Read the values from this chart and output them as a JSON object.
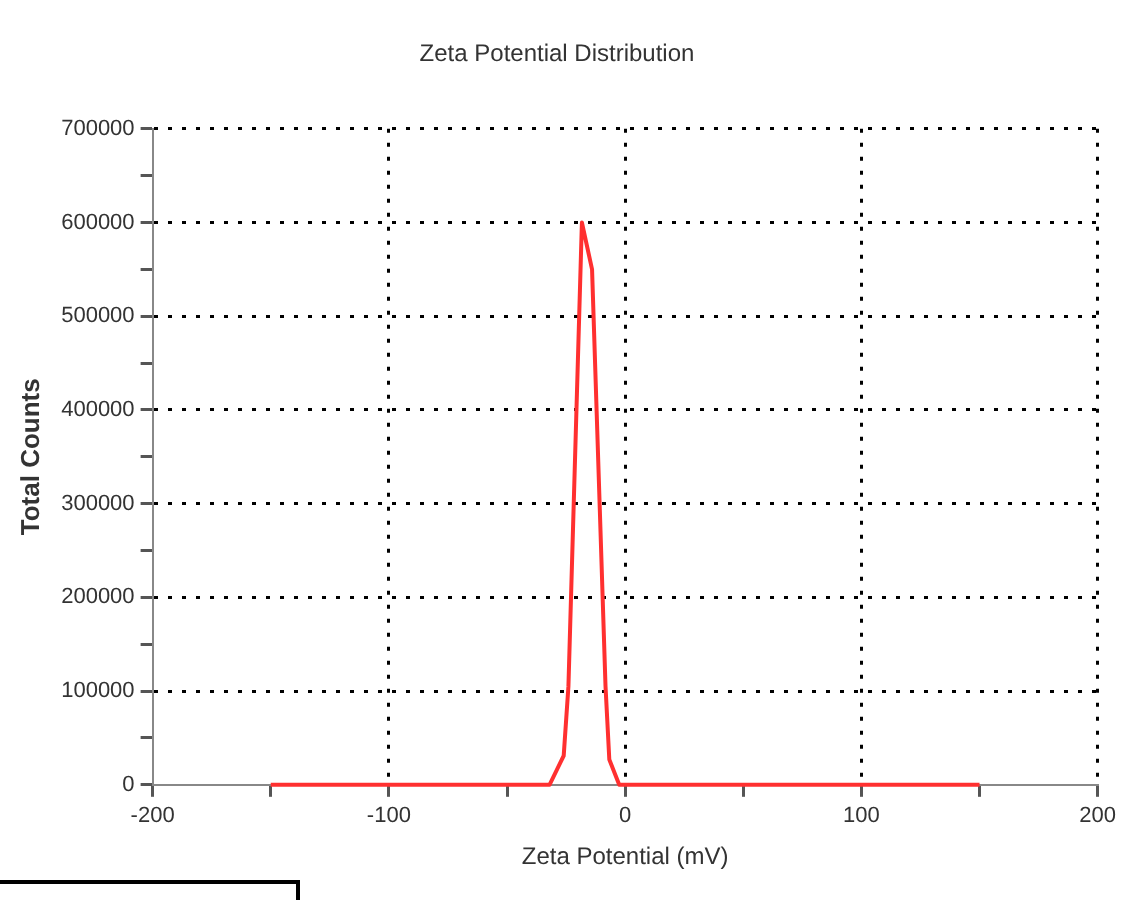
{
  "chart_data": {
    "type": "line",
    "title": "Zeta Potential Distribution",
    "xlabel": "Zeta Potential (mV)",
    "ylabel": "Total Counts",
    "x": [
      -150,
      -100,
      -50,
      -32,
      -26,
      -24,
      -18.3,
      -14,
      -8.3,
      -6.7,
      -2.5,
      0,
      50,
      100,
      150
    ],
    "series": [
      {
        "color": "#ff3030",
        "values": [
          0,
          0,
          0,
          0,
          31000,
          105000,
          600000,
          550000,
          105000,
          27000,
          0,
          0,
          0,
          0,
          0
        ]
      }
    ],
    "xlim": [
      -200,
      200
    ],
    "xticks": [
      -200,
      {
        "value": -150,
        "label": null
      },
      -100,
      {
        "value": -50,
        "label": null
      },
      0,
      {
        "value": 50,
        "label": null
      },
      100,
      {
        "value": 150,
        "label": null
      },
      200
    ],
    "ylim": [
      0,
      700000
    ],
    "yticks": [
      0,
      {
        "value": 50000,
        "label": null
      },
      100000,
      {
        "value": 150000,
        "label": null
      },
      200000,
      {
        "value": 250000,
        "label": null
      },
      300000,
      {
        "value": 350000,
        "label": null
      },
      400000,
      {
        "value": 450000,
        "label": null
      },
      500000,
      {
        "value": 550000,
        "label": null
      },
      600000,
      {
        "value": 650000,
        "label": null
      },
      700000
    ],
    "grid": true,
    "legend": false,
    "marker": "none",
    "line_style": "solid"
  }
}
